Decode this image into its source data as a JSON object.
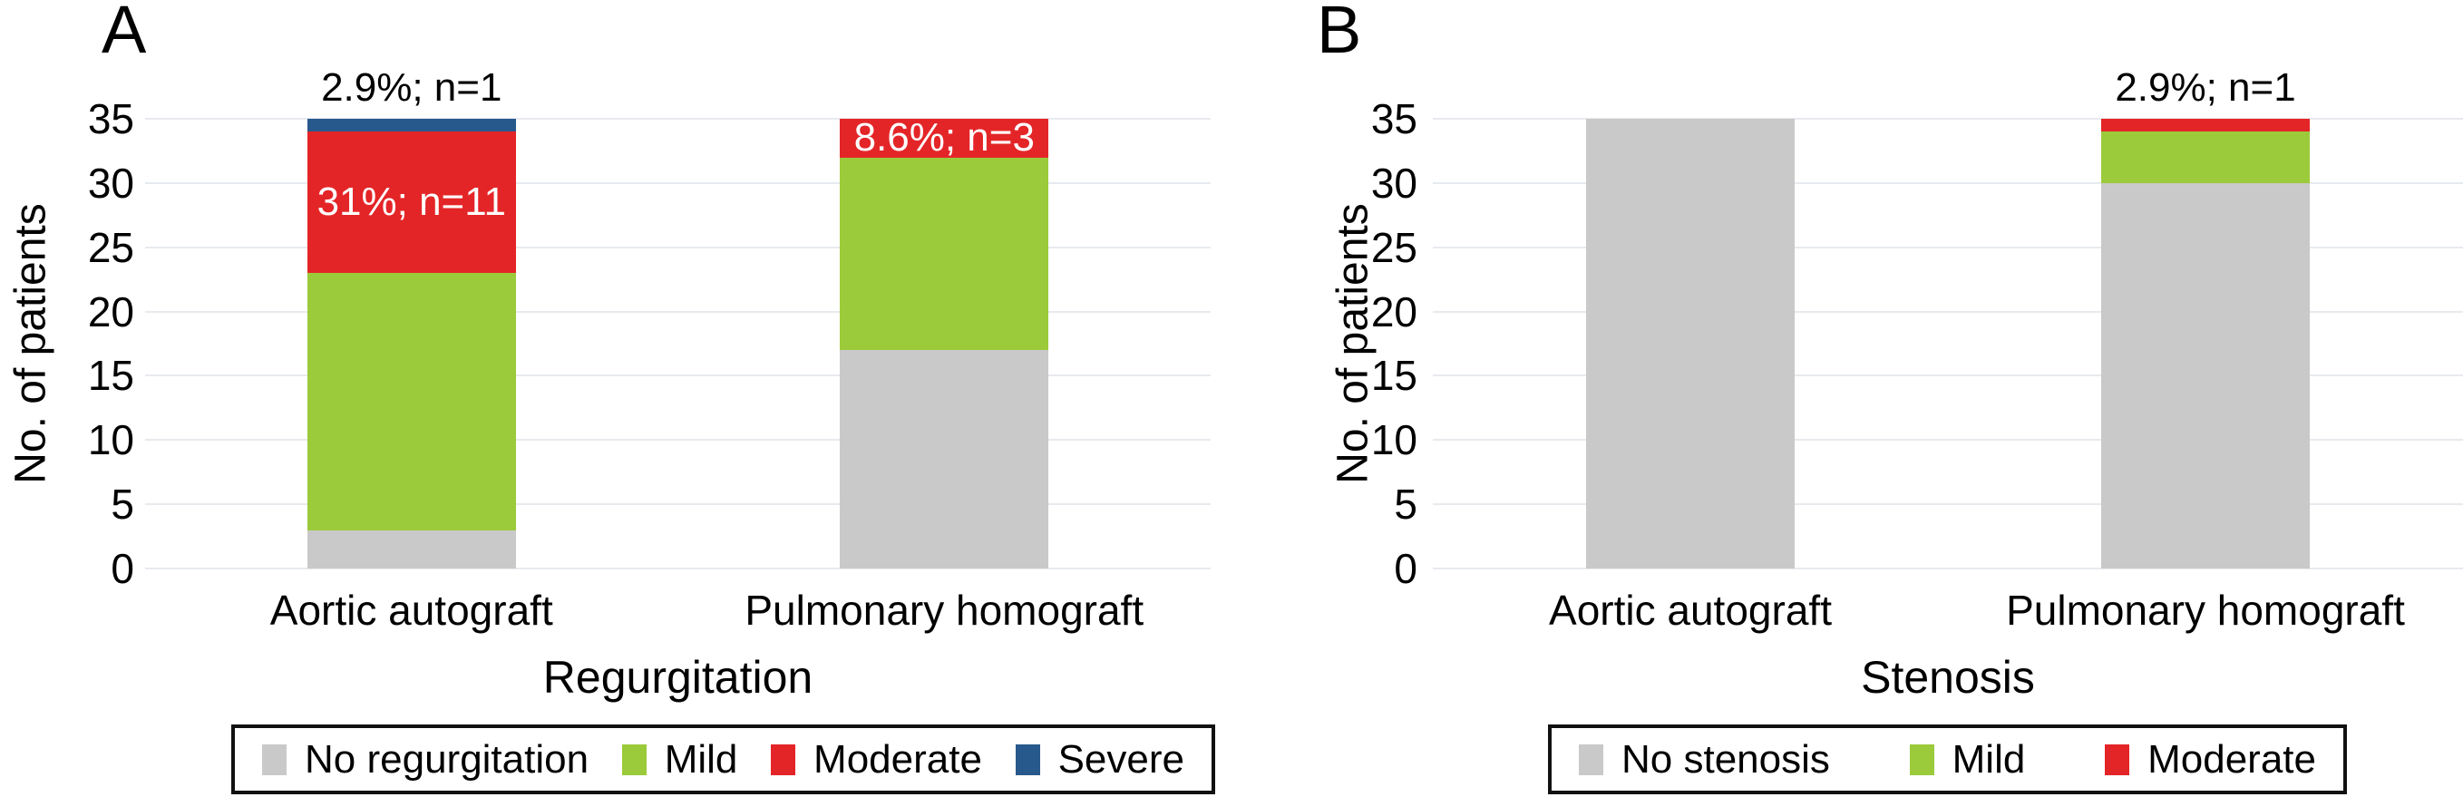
{
  "chart_data": [
    {
      "type": "bar",
      "stacked": true,
      "panel_letter": "A",
      "title": "Regurgitation",
      "ylabel": "No. of patients",
      "ylim": [
        0,
        35
      ],
      "yticks": [
        0,
        5,
        10,
        15,
        20,
        25,
        30,
        35
      ],
      "grid": true,
      "legend_position": "bottom",
      "categories": [
        "Aortic autograft",
        "Pulmonary homograft"
      ],
      "series": [
        {
          "name": "No regurgitation",
          "color": "#c9c9c9",
          "values": [
            3,
            17
          ]
        },
        {
          "name": "Mild",
          "color": "#9bca3b",
          "values": [
            20,
            15
          ]
        },
        {
          "name": "Moderate",
          "color": "#e42528",
          "values": [
            11,
            3
          ]
        },
        {
          "name": "Severe",
          "color": "#27598c",
          "values": [
            1,
            0
          ]
        }
      ],
      "annotations": [
        {
          "text": "2.9%; n=1",
          "bar": 0,
          "series": 3,
          "placement": "above",
          "color": "#000000"
        },
        {
          "text": "31%; n=11",
          "bar": 0,
          "series": 2,
          "placement": "inside",
          "color": "#ffffff"
        },
        {
          "text": "8.6%; n=3",
          "bar": 1,
          "series": 2,
          "placement": "inside",
          "color": "#ffffff"
        }
      ],
      "legend": [
        {
          "label": "No regurgitation",
          "color": "#c9c9c9"
        },
        {
          "label": "Mild",
          "color": "#9bca3b"
        },
        {
          "label": "Moderate",
          "color": "#e42528"
        },
        {
          "label": "Severe",
          "color": "#27598c"
        }
      ]
    },
    {
      "type": "bar",
      "stacked": true,
      "panel_letter": "B",
      "title": "Stenosis",
      "ylabel": "No. of patients",
      "ylim": [
        0,
        35
      ],
      "yticks": [
        0,
        5,
        10,
        15,
        20,
        25,
        30,
        35
      ],
      "grid": true,
      "legend_position": "bottom",
      "categories": [
        "Aortic autograft",
        "Pulmonary homograft"
      ],
      "series": [
        {
          "name": "No stenosis",
          "color": "#c9c9c9",
          "values": [
            35,
            30
          ]
        },
        {
          "name": "Mild",
          "color": "#9bca3b",
          "values": [
            0,
            4
          ]
        },
        {
          "name": "Moderate",
          "color": "#e42528",
          "values": [
            0,
            1
          ]
        }
      ],
      "annotations": [
        {
          "text": "2.9%; n=1",
          "bar": 1,
          "series": 2,
          "placement": "above",
          "color": "#000000"
        }
      ],
      "legend": [
        {
          "label": "No stenosis",
          "color": "#c9c9c9"
        },
        {
          "label": "Mild",
          "color": "#9bca3b"
        },
        {
          "label": "Moderate",
          "color": "#e42528"
        }
      ]
    }
  ],
  "styles": {
    "grid_color": "#e7eaee",
    "text_color": "#000000",
    "background": "#ffffff"
  }
}
